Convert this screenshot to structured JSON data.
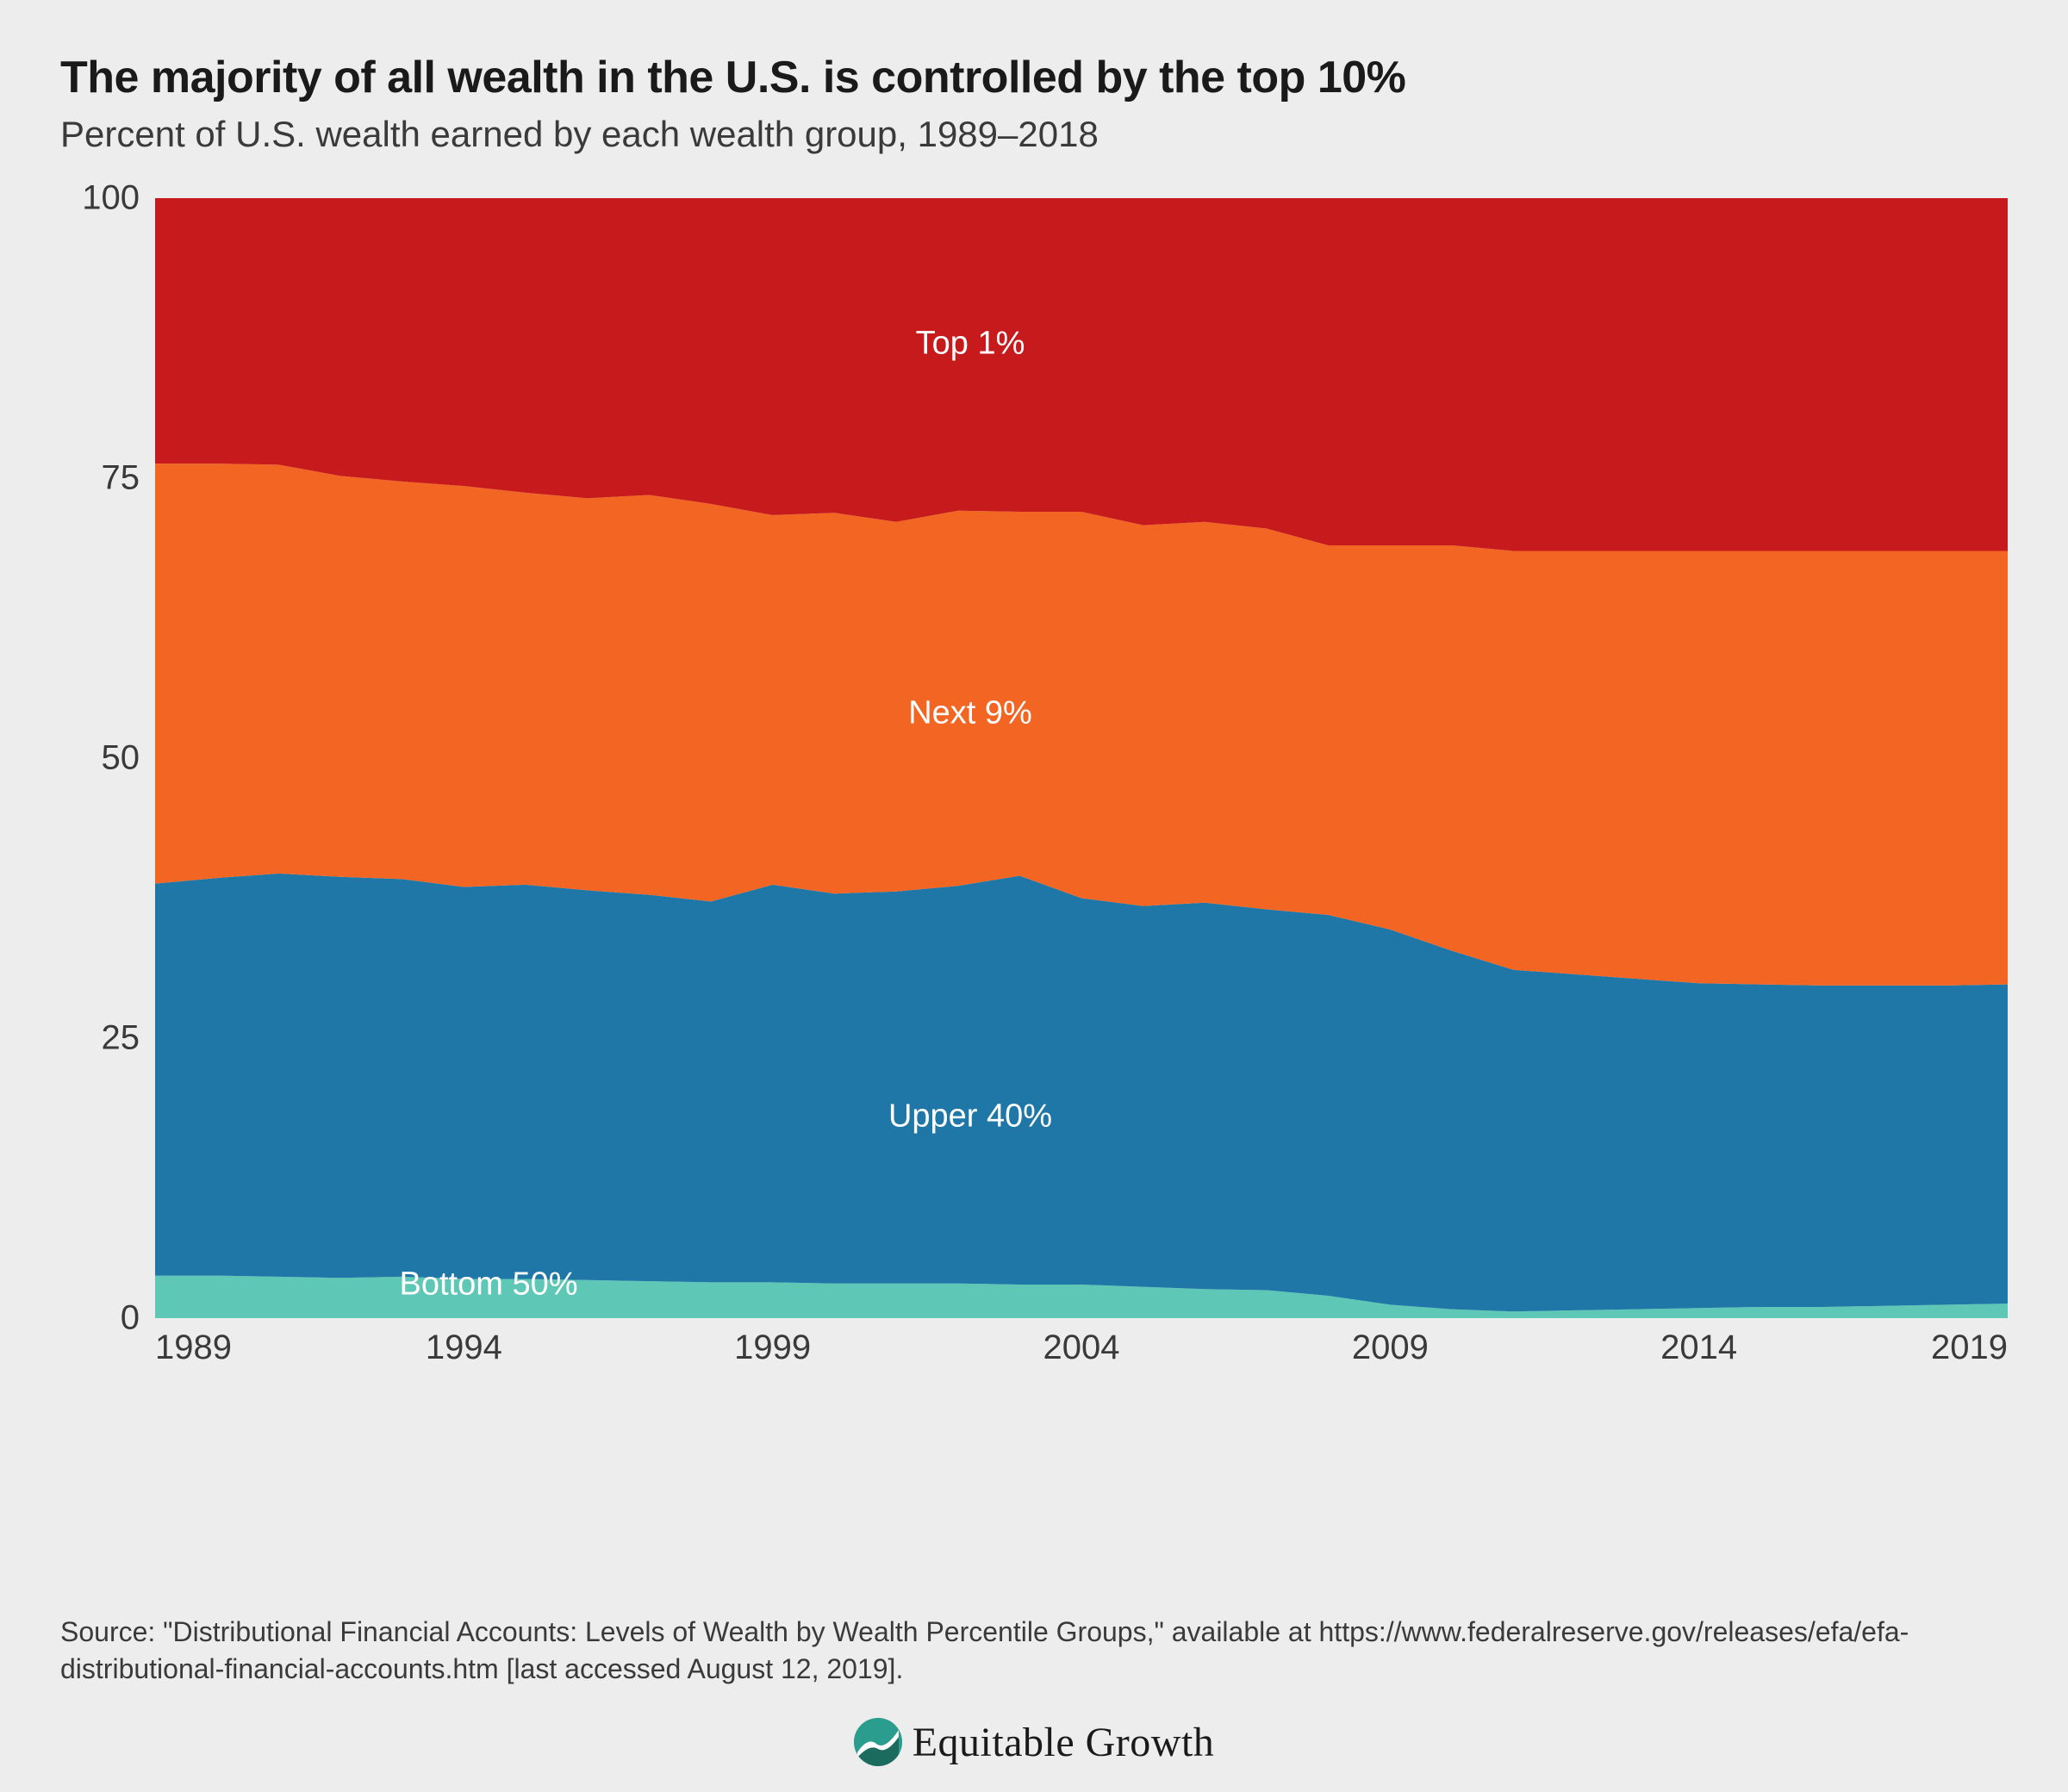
{
  "title": "The majority of all wealth in the U.S. is controlled by the top 10%",
  "subtitle": "Percent of U.S. wealth earned by each wealth group, 1989–2018",
  "source": "Source: \"Distributional Financial Accounts: Levels of Wealth by Wealth Percentile Groups,\" available at https://www.federalreserve.gov/releases/efa/efa-distributional-financial-accounts.htm [last accessed August 12, 2019].",
  "logo_text": "Equitable Growth",
  "chart": {
    "type": "stacked-area",
    "background_color": "#ededed",
    "title_fontsize": 52,
    "subtitle_fontsize": 42,
    "axis_fontsize": 40,
    "label_fontsize": 38,
    "text_color": "#3a3a3a",
    "label_color": "#ffffff",
    "ylim": [
      0,
      100
    ],
    "yticks": [
      0,
      25,
      50,
      75,
      100
    ],
    "x_start": 1989,
    "x_end": 2019,
    "xticks": [
      1989,
      1994,
      1999,
      2004,
      2009,
      2014,
      2019
    ],
    "years": [
      1989,
      1990,
      1991,
      1992,
      1993,
      1994,
      1995,
      1996,
      1997,
      1998,
      1999,
      2000,
      2001,
      2002,
      2003,
      2004,
      2005,
      2006,
      2007,
      2008,
      2009,
      2010,
      2011,
      2012,
      2013,
      2014,
      2015,
      2016,
      2017,
      2018,
      2019
    ],
    "series": [
      {
        "name": "Bottom 50%",
        "color": "#5fc7b5",
        "values": [
          3.8,
          3.8,
          3.7,
          3.6,
          3.7,
          3.5,
          3.5,
          3.4,
          3.3,
          3.2,
          3.2,
          3.1,
          3.1,
          3.1,
          3.0,
          3.0,
          2.8,
          2.6,
          2.5,
          2.0,
          1.2,
          0.8,
          0.6,
          0.7,
          0.8,
          0.9,
          1.0,
          1.0,
          1.1,
          1.2,
          1.3
        ],
        "label_x_pct": 18,
        "label_y_pct": 97
      },
      {
        "name": "Upper 40%",
        "color": "#1f77a8",
        "values": [
          35.0,
          35.5,
          36.0,
          35.8,
          35.5,
          35.0,
          35.2,
          34.8,
          34.5,
          34.0,
          35.5,
          34.8,
          35.0,
          35.5,
          36.5,
          34.5,
          34.0,
          34.5,
          34.0,
          34.0,
          33.5,
          32.0,
          30.5,
          30.0,
          29.5,
          29.0,
          28.8,
          28.7,
          28.6,
          28.5,
          28.5
        ],
        "label_x_pct": 44,
        "label_y_pct": 82
      },
      {
        "name": "Next 9%",
        "color": "#f26522",
        "values": [
          37.5,
          37.0,
          36.5,
          35.8,
          35.5,
          35.8,
          35.0,
          35.0,
          35.7,
          35.5,
          33.0,
          34.0,
          33.0,
          33.5,
          32.5,
          34.5,
          34.0,
          34.0,
          34.0,
          33.0,
          34.3,
          36.2,
          37.4,
          37.8,
          38.2,
          38.6,
          38.7,
          38.8,
          38.8,
          38.8,
          38.7
        ],
        "label_x_pct": 44,
        "label_y_pct": 46
      },
      {
        "name": "Top 1%",
        "color": "#c61a1c",
        "values": [
          23.7,
          23.7,
          23.8,
          24.8,
          25.3,
          25.7,
          26.3,
          26.8,
          26.5,
          27.3,
          28.3,
          28.1,
          28.9,
          27.9,
          28.0,
          28.0,
          29.2,
          28.9,
          29.5,
          31.0,
          31.0,
          31.0,
          31.5,
          31.5,
          31.5,
          31.5,
          31.5,
          31.5,
          31.5,
          31.5,
          31.5
        ],
        "label_x_pct": 44,
        "label_y_pct": 13
      }
    ]
  }
}
